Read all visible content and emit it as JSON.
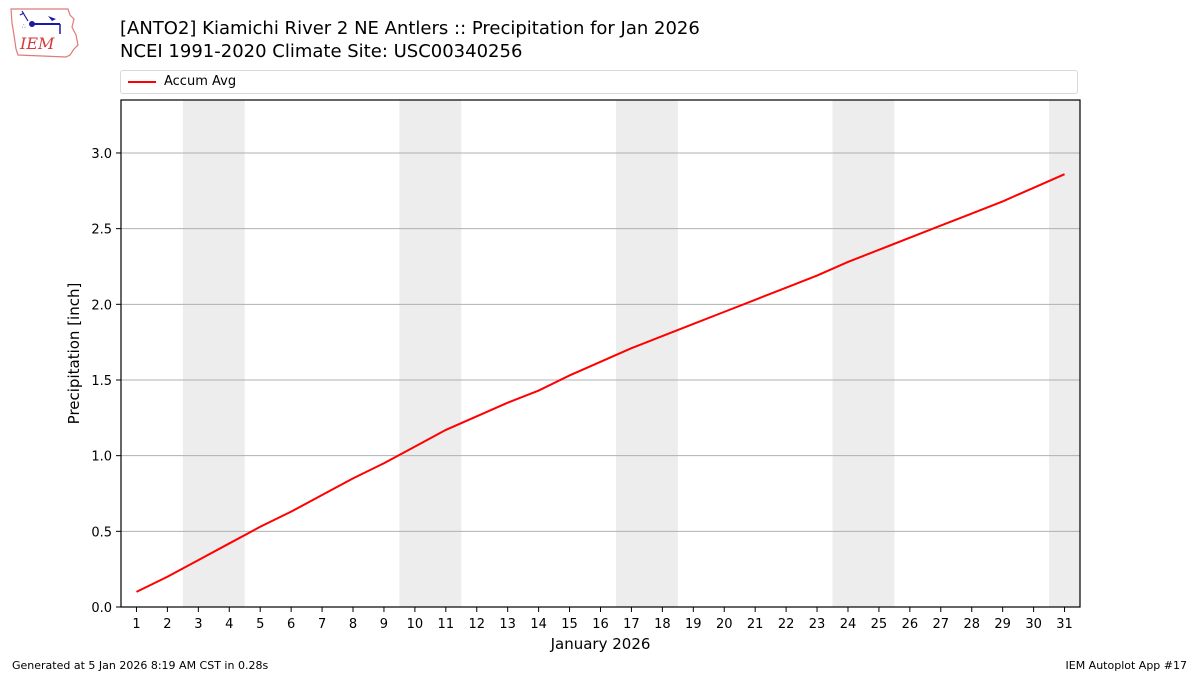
{
  "header": {
    "title_line1": "[ANTO2] Kiamichi River 2 NE Antlers :: Precipitation for Jan 2026",
    "title_line2": "NCEI 1991-2020 Climate Site: USC00340256",
    "logo_text": "IEM"
  },
  "legend": {
    "items": [
      {
        "label": "Accum Avg",
        "color": "#ff0000"
      }
    ]
  },
  "footer": {
    "generated": "Generated at 5 Jan 2026 8:19 AM CST in 0.28s",
    "app": "IEM Autoplot App #17"
  },
  "colors": {
    "line": "#ff0000",
    "weekend_band": "#ededed",
    "grid": "#b0b0b0"
  },
  "chart_data": {
    "type": "line",
    "title": "[ANTO2] Kiamichi River 2 NE Antlers :: Precipitation for Jan 2026 / NCEI 1991-2020 Climate Site: USC00340256",
    "xlabel": "January 2026",
    "ylabel": "Precipitation [inch]",
    "xlim": [
      0.5,
      31.5
    ],
    "ylim": [
      0,
      3.35
    ],
    "grid": "y",
    "legend_position": "top",
    "x": [
      1,
      2,
      3,
      4,
      5,
      6,
      7,
      8,
      9,
      10,
      11,
      12,
      13,
      14,
      15,
      16,
      17,
      18,
      19,
      20,
      21,
      22,
      23,
      24,
      25,
      26,
      27,
      28,
      29,
      30,
      31
    ],
    "x_tick_labels": [
      "1",
      "2",
      "3",
      "4",
      "5",
      "6",
      "7",
      "8",
      "9",
      "10",
      "11",
      "12",
      "13",
      "14",
      "15",
      "16",
      "17",
      "18",
      "19",
      "20",
      "21",
      "22",
      "23",
      "24",
      "25",
      "26",
      "27",
      "28",
      "29",
      "30",
      "31"
    ],
    "y_ticks": [
      0.0,
      0.5,
      1.0,
      1.5,
      2.0,
      2.5,
      3.0
    ],
    "y_tick_labels": [
      "0.0",
      "0.5",
      "1.0",
      "1.5",
      "2.0",
      "2.5",
      "3.0"
    ],
    "series": [
      {
        "name": "Accum Avg",
        "color": "#ff0000",
        "values": [
          0.1,
          0.2,
          0.31,
          0.42,
          0.53,
          0.63,
          0.74,
          0.85,
          0.95,
          1.06,
          1.17,
          1.26,
          1.35,
          1.43,
          1.53,
          1.62,
          1.71,
          1.79,
          1.87,
          1.95,
          2.03,
          2.11,
          2.19,
          2.28,
          2.36,
          2.44,
          2.52,
          2.6,
          2.68,
          2.77,
          2.86
        ]
      }
    ],
    "shaded_bands": [
      [
        2.5,
        4.5
      ],
      [
        9.5,
        11.5
      ],
      [
        16.5,
        18.5
      ],
      [
        23.5,
        25.5
      ],
      [
        30.5,
        31.5
      ]
    ]
  }
}
